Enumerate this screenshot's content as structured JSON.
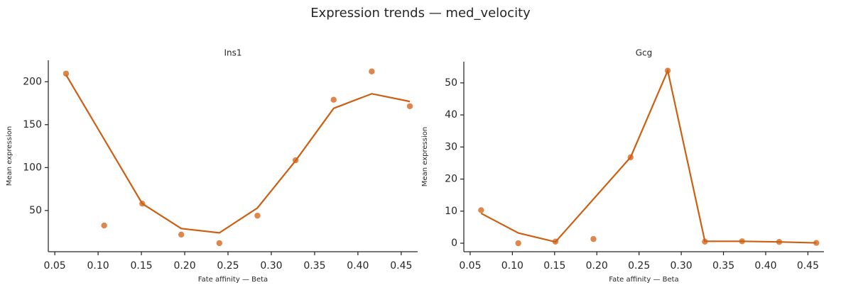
{
  "title": "Expression trends — med_velocity",
  "chart_data": [
    {
      "type": "line",
      "title": "Ins1",
      "xlabel": "Fate affinity — Beta",
      "ylabel": "Mean expression",
      "xlim": [
        0.0425,
        0.469
      ],
      "ylim": [
        2,
        225
      ],
      "xticks": [
        {
          "value": 0.05,
          "label": "0.05"
        },
        {
          "value": 0.1,
          "label": "0.10"
        },
        {
          "value": 0.15,
          "label": "0.15"
        },
        {
          "value": 0.2,
          "label": "0.20"
        },
        {
          "value": 0.25,
          "label": "0.25"
        },
        {
          "value": 0.3,
          "label": "0.30"
        },
        {
          "value": 0.35,
          "label": "0.35"
        },
        {
          "value": 0.4,
          "label": "0.40"
        },
        {
          "value": 0.45,
          "label": "0.45"
        }
      ],
      "yticks": [
        50,
        100,
        150,
        200
      ],
      "series": [
        {
          "mode": "markers",
          "color": "#d9712b",
          "x": [
            0.063,
            0.107,
            0.151,
            0.196,
            0.24,
            0.284,
            0.328,
            0.372,
            0.416,
            0.46
          ],
          "values": [
            209.5,
            32.5,
            58,
            22,
            12,
            44,
            108.5,
            179,
            212,
            171.5
          ]
        },
        {
          "mode": "lines",
          "color": "#cc5f12",
          "x": [
            0.063,
            0.151,
            0.196,
            0.24,
            0.284,
            0.328,
            0.372,
            0.416,
            0.46
          ],
          "values": [
            208,
            58,
            29,
            24,
            53,
            108,
            169,
            186,
            177
          ]
        }
      ]
    },
    {
      "type": "line",
      "title": "Gcg",
      "xlabel": "Fate affinity — Beta",
      "ylabel": "Mean expression",
      "xlim": [
        0.0425,
        0.469
      ],
      "ylim": [
        -2.65,
        56.6
      ],
      "xticks": [
        {
          "value": 0.05,
          "label": "0.05"
        },
        {
          "value": 0.1,
          "label": "0.10"
        },
        {
          "value": 0.15,
          "label": "0.15"
        },
        {
          "value": 0.2,
          "label": "0.20"
        },
        {
          "value": 0.25,
          "label": "0.25"
        },
        {
          "value": 0.3,
          "label": "0.30"
        },
        {
          "value": 0.35,
          "label": "0.35"
        },
        {
          "value": 0.4,
          "label": "0.40"
        },
        {
          "value": 0.45,
          "label": "0.45"
        }
      ],
      "yticks": [
        0,
        10,
        20,
        30,
        40,
        50
      ],
      "series": [
        {
          "mode": "markers",
          "color": "#d9712b",
          "x": [
            0.063,
            0.107,
            0.151,
            0.196,
            0.24,
            0.284,
            0.328,
            0.372,
            0.416,
            0.46
          ],
          "values": [
            10.3,
            0,
            0.5,
            1.3,
            26.8,
            53.8,
            0.5,
            0.6,
            0.4,
            0.1
          ]
        },
        {
          "mode": "lines",
          "color": "#cc5f12",
          "x": [
            0.063,
            0.107,
            0.151,
            0.24,
            0.284,
            0.328,
            0.372,
            0.416,
            0.46
          ],
          "values": [
            9.3,
            3.2,
            0.4,
            26.8,
            53.8,
            0.6,
            0.6,
            0.4,
            0.1
          ]
        }
      ]
    }
  ]
}
